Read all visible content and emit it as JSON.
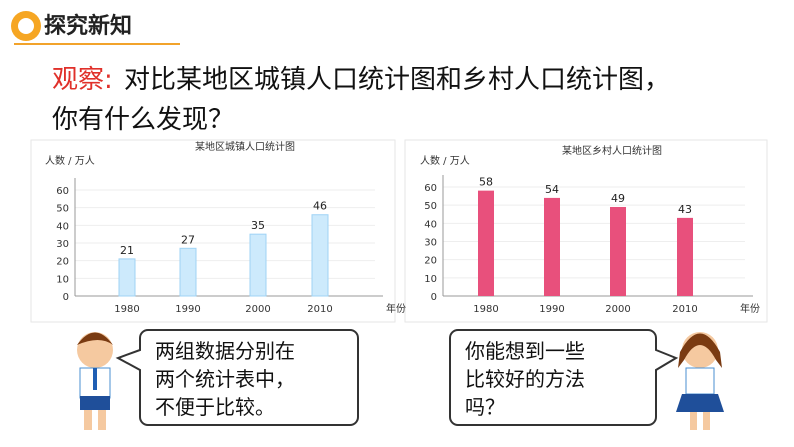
{
  "header": {
    "title": "探究新知"
  },
  "question": {
    "label": "观察:",
    "line1": "对比某地区城镇人口统计图和乡村人口统计图，",
    "line2": "你有什么发现？"
  },
  "chart_data": [
    {
      "type": "bar",
      "title": "某地区城镇人口统计图",
      "y_label": "人数 / 万人",
      "x_label": "年份",
      "categories": [
        "1980",
        "1990",
        "2000",
        "2010"
      ],
      "values": [
        21,
        27,
        35,
        46
      ],
      "color": "#cdeafc",
      "ylim": [
        0,
        60
      ],
      "yticks": [
        0,
        10,
        20,
        30,
        40,
        50,
        60
      ],
      "grid": true
    },
    {
      "type": "bar",
      "title": "某地区乡村人口统计图",
      "y_label": "人数 / 万人",
      "x_label": "年份",
      "categories": [
        "1980",
        "1990",
        "2000",
        "2010"
      ],
      "values": [
        58,
        54,
        49,
        43
      ],
      "color": "#e8507c",
      "ylim": [
        0,
        60
      ],
      "yticks": [
        0,
        10,
        20,
        30,
        40,
        50,
        60
      ],
      "grid": true
    }
  ],
  "bubbles": [
    {
      "lines": [
        "两组数据分别在",
        "两个统计表中，",
        "不便于比较。"
      ]
    },
    {
      "lines": [
        "你能想到一些",
        "比较好的方法",
        "吗？"
      ]
    }
  ]
}
